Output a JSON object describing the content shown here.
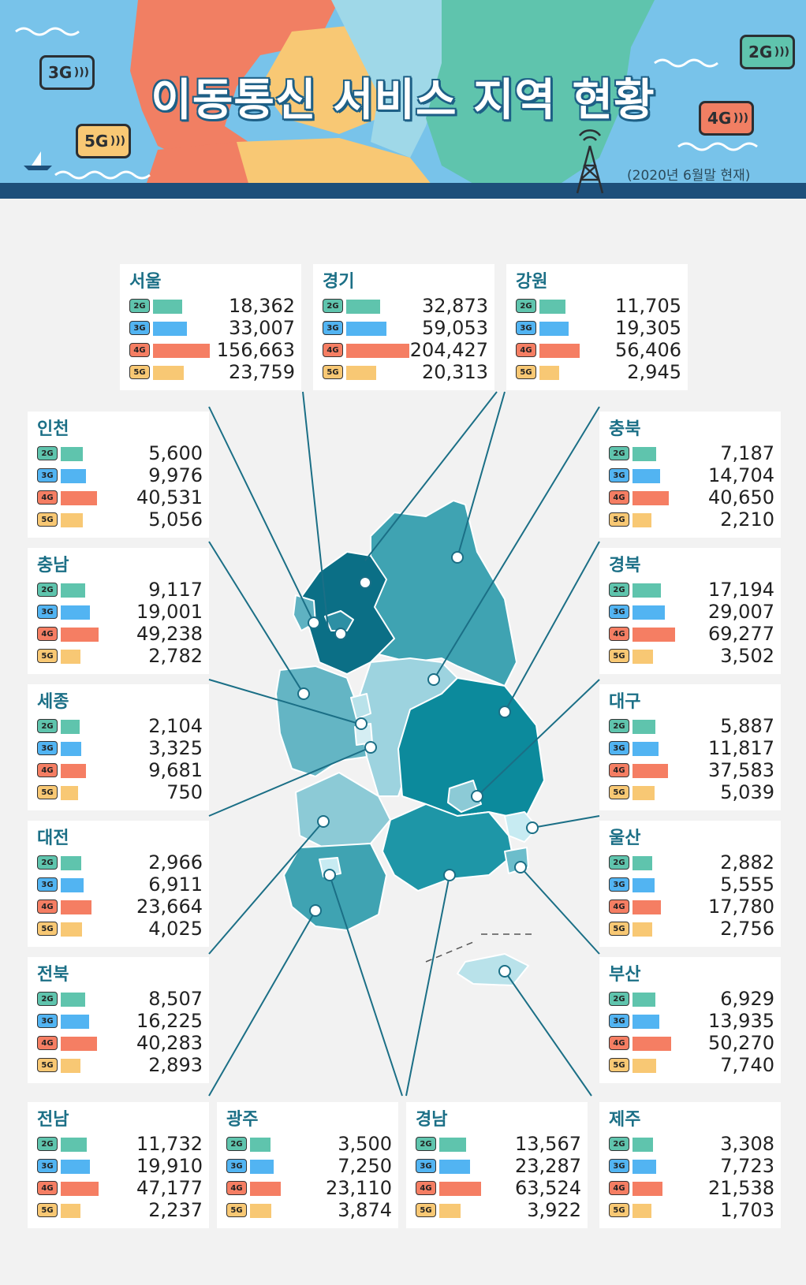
{
  "header": {
    "title": "이동통신 서비스 지역 현황",
    "date_note": "(2020년 6월말 현재)",
    "badges": [
      "3G",
      "5G",
      "2G",
      "4G"
    ]
  },
  "colors": {
    "2g": "#5fc4ad",
    "3g": "#52b4f2",
    "4g": "#f57e63",
    "5g": "#f8c874",
    "region_name": "#1b6f86"
  },
  "tags": [
    "2G",
    "3G",
    "4G",
    "5G"
  ],
  "max_value": 204427,
  "regions": [
    {
      "name": "서울",
      "values": [
        "18,362",
        "33,007",
        "156,663",
        "23,759"
      ],
      "nums": [
        18362,
        33007,
        156663,
        23759
      ]
    },
    {
      "name": "경기",
      "values": [
        "32,873",
        "59,053",
        "204,427",
        "20,313"
      ],
      "nums": [
        32873,
        59053,
        204427,
        20313
      ]
    },
    {
      "name": "강원",
      "values": [
        "11,705",
        "19,305",
        "56,406",
        "2,945"
      ],
      "nums": [
        11705,
        19305,
        56406,
        2945
      ]
    },
    {
      "name": "인천",
      "values": [
        "5,600",
        "9,976",
        "40,531",
        "5,056"
      ],
      "nums": [
        5600,
        9976,
        40531,
        5056
      ]
    },
    {
      "name": "충북",
      "values": [
        "7,187",
        "14,704",
        "40,650",
        "2,210"
      ],
      "nums": [
        7187,
        14704,
        40650,
        2210
      ]
    },
    {
      "name": "충남",
      "values": [
        "9,117",
        "19,001",
        "49,238",
        "2,782"
      ],
      "nums": [
        9117,
        19001,
        49238,
        2782
      ]
    },
    {
      "name": "경북",
      "values": [
        "17,194",
        "29,007",
        "69,277",
        "3,502"
      ],
      "nums": [
        17194,
        29007,
        69277,
        3502
      ]
    },
    {
      "name": "세종",
      "values": [
        "2,104",
        "3,325",
        "9,681",
        "750"
      ],
      "nums": [
        2104,
        3325,
        9681,
        750
      ]
    },
    {
      "name": "대구",
      "values": [
        "5,887",
        "11,817",
        "37,583",
        "5,039"
      ],
      "nums": [
        5887,
        11817,
        37583,
        5039
      ]
    },
    {
      "name": "대전",
      "values": [
        "2,966",
        "6,911",
        "23,664",
        "4,025"
      ],
      "nums": [
        2966,
        6911,
        23664,
        4025
      ]
    },
    {
      "name": "울산",
      "values": [
        "2,882",
        "5,555",
        "17,780",
        "2,756"
      ],
      "nums": [
        2882,
        5555,
        17780,
        2756
      ]
    },
    {
      "name": "전북",
      "values": [
        "8,507",
        "16,225",
        "40,283",
        "2,893"
      ],
      "nums": [
        8507,
        16225,
        40283,
        2893
      ]
    },
    {
      "name": "부산",
      "values": [
        "6,929",
        "13,935",
        "50,270",
        "7,740"
      ],
      "nums": [
        6929,
        13935,
        50270,
        7740
      ]
    },
    {
      "name": "전남",
      "values": [
        "11,732",
        "19,910",
        "47,177",
        "2,237"
      ],
      "nums": [
        11732,
        19910,
        47177,
        2237
      ]
    },
    {
      "name": "광주",
      "values": [
        "3,500",
        "7,250",
        "23,110",
        "3,874"
      ],
      "nums": [
        3500,
        7250,
        23110,
        3874
      ]
    },
    {
      "name": "경남",
      "values": [
        "13,567",
        "23,287",
        "63,524",
        "3,922"
      ],
      "nums": [
        13567,
        23287,
        63524,
        3922
      ]
    },
    {
      "name": "제주",
      "values": [
        "3,308",
        "7,723",
        "21,538",
        "1,703"
      ],
      "nums": [
        3308,
        7723,
        21538,
        1703
      ]
    }
  ]
}
